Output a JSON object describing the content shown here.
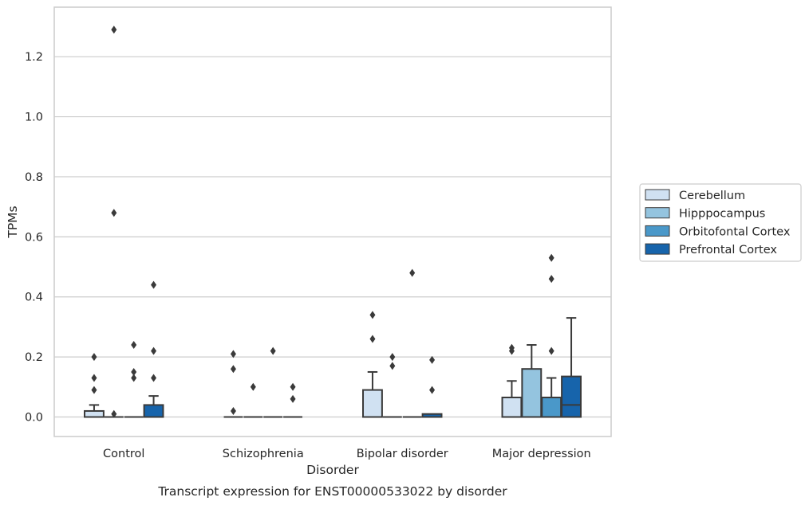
{
  "chart_data": {
    "type": "box",
    "title": "Transcript expression for ENST00000533022 by disorder",
    "xlabel": "Disorder",
    "ylabel": "TPMs",
    "ylim": [
      -0.065,
      1.365
    ],
    "yticks": [
      0.0,
      0.2,
      0.4,
      0.6,
      0.8,
      1.0,
      1.2
    ],
    "ytick_labels": [
      "0.0",
      "0.2",
      "0.4",
      "0.6",
      "0.8",
      "1.0",
      "1.2"
    ],
    "grid": "horizontal",
    "legend_position": "right",
    "categories": [
      "Control",
      "Schizophrenia",
      "Bipolar disorder",
      "Major depression"
    ],
    "colors": {
      "Cerebellum": "#d0e1f2",
      "Hipppocampus": "#94c4df",
      "Orbitofontal Cortex": "#4a98c9",
      "Prefrontal Cortex": "#1764ab",
      "edge": "#3a3a3a",
      "grid": "#cccccc"
    },
    "series": [
      {
        "name": "Cerebellum",
        "boxes": [
          {
            "q1": 0.0,
            "median": 0.0,
            "q3": 0.02,
            "whisker_low": 0.0,
            "whisker_high": 0.04,
            "outliers": [
              0.2,
              0.13,
              0.09
            ]
          },
          {
            "q1": 0.0,
            "median": 0.0,
            "q3": 0.0,
            "whisker_low": 0.0,
            "whisker_high": 0.0,
            "outliers": [
              0.21,
              0.16,
              0.02
            ]
          },
          {
            "q1": 0.0,
            "median": 0.0,
            "q3": 0.09,
            "whisker_low": 0.0,
            "whisker_high": 0.15,
            "outliers": [
              0.34,
              0.26
            ]
          },
          {
            "q1": 0.0,
            "median": 0.0,
            "q3": 0.065,
            "whisker_low": 0.0,
            "whisker_high": 0.12,
            "outliers": [
              0.23,
              0.22
            ]
          }
        ]
      },
      {
        "name": "Hipppocampus",
        "boxes": [
          {
            "q1": 0.0,
            "median": 0.0,
            "q3": 0.0,
            "whisker_low": 0.0,
            "whisker_high": 0.0,
            "outliers": [
              1.29,
              0.68,
              0.01
            ]
          },
          {
            "q1": 0.0,
            "median": 0.0,
            "q3": 0.0,
            "whisker_low": 0.0,
            "whisker_high": 0.0,
            "outliers": [
              0.1
            ]
          },
          {
            "q1": 0.0,
            "median": 0.0,
            "q3": 0.0,
            "whisker_low": 0.0,
            "whisker_high": 0.0,
            "outliers": [
              0.2,
              0.17
            ]
          },
          {
            "q1": 0.0,
            "median": 0.0,
            "q3": 0.16,
            "whisker_low": 0.0,
            "whisker_high": 0.24,
            "outliers": []
          }
        ]
      },
      {
        "name": "Orbitofontal Cortex",
        "boxes": [
          {
            "q1": 0.0,
            "median": 0.0,
            "q3": 0.0,
            "whisker_low": 0.0,
            "whisker_high": 0.0,
            "outliers": [
              0.24,
              0.15,
              0.13
            ]
          },
          {
            "q1": 0.0,
            "median": 0.0,
            "q3": 0.0,
            "whisker_low": 0.0,
            "whisker_high": 0.0,
            "outliers": [
              0.22
            ]
          },
          {
            "q1": 0.0,
            "median": 0.0,
            "q3": 0.0,
            "whisker_low": 0.0,
            "whisker_high": 0.0,
            "outliers": [
              0.48
            ]
          },
          {
            "q1": 0.0,
            "median": 0.0,
            "q3": 0.065,
            "whisker_low": 0.0,
            "whisker_high": 0.13,
            "outliers": [
              0.53,
              0.46,
              0.22
            ]
          }
        ]
      },
      {
        "name": "Prefrontal Cortex",
        "boxes": [
          {
            "q1": 0.0,
            "median": 0.0,
            "q3": 0.04,
            "whisker_low": 0.0,
            "whisker_high": 0.07,
            "outliers": [
              0.44,
              0.22,
              0.13
            ]
          },
          {
            "q1": 0.0,
            "median": 0.0,
            "q3": 0.0,
            "whisker_low": 0.0,
            "whisker_high": 0.0,
            "outliers": [
              0.1,
              0.06
            ]
          },
          {
            "q1": 0.0,
            "median": 0.0,
            "q3": 0.01,
            "whisker_low": 0.0,
            "whisker_high": 0.01,
            "outliers": [
              0.19,
              0.09
            ]
          },
          {
            "q1": 0.0,
            "median": 0.04,
            "q3": 0.135,
            "whisker_low": 0.0,
            "whisker_high": 0.33,
            "outliers": []
          }
        ]
      }
    ]
  }
}
